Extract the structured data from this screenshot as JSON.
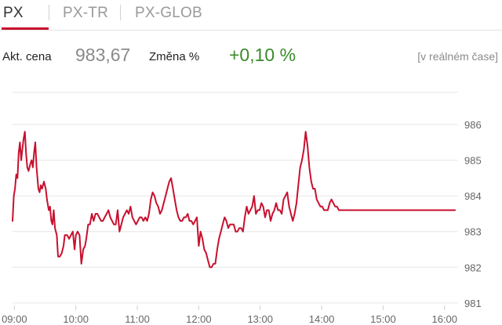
{
  "tabs": [
    {
      "label": "PX",
      "active": true
    },
    {
      "label": "PX-TR",
      "active": false
    },
    {
      "label": "PX-GLOB",
      "active": false
    }
  ],
  "quote": {
    "price_label": "Akt. cena",
    "price": "983,67",
    "change_label": "Změna %",
    "change": "+0,10 %",
    "status": "[v reálném čase]"
  },
  "colors": {
    "accent": "#c8102e",
    "positive": "#3a8a2a",
    "line": "#c8102e"
  },
  "chart_data": {
    "type": "line",
    "title": "",
    "xlabel": "",
    "ylabel": "",
    "ylim": [
      980.8,
      986.9
    ],
    "y_ticks": [
      981,
      982,
      983,
      984,
      985,
      986
    ],
    "x_ticks": [
      "09:00",
      "10:00",
      "11:00",
      "12:00",
      "13:00",
      "14:00",
      "15:00",
      "16:00"
    ],
    "x_range_hours": [
      8.97,
      16.22
    ],
    "grid": "horizontal",
    "series": [
      {
        "x": [
          8.97,
          8.99,
          9.01,
          9.03,
          9.05,
          9.07,
          9.09,
          9.11,
          9.13,
          9.15,
          9.17,
          9.19,
          9.21,
          9.23,
          9.26,
          9.28,
          9.3,
          9.32,
          9.34,
          9.36,
          9.39,
          9.41,
          9.43,
          9.45,
          9.48,
          9.51,
          9.53,
          9.56,
          9.58,
          9.6,
          9.62,
          9.64,
          9.66,
          9.69,
          9.71,
          9.74,
          9.77,
          9.8,
          9.82,
          9.84,
          9.86,
          9.89,
          9.92,
          9.95,
          9.98,
          10.0,
          10.03,
          10.06,
          10.09,
          10.12,
          10.15,
          10.17,
          10.2,
          10.23,
          10.26,
          10.29,
          10.32,
          10.35,
          10.38,
          10.41,
          10.44,
          10.47,
          10.5,
          10.53,
          10.56,
          10.59,
          10.62,
          10.65,
          10.68,
          10.71,
          10.74,
          10.77,
          10.8,
          10.83,
          10.86,
          10.89,
          10.92,
          10.95,
          10.98,
          11.01,
          11.04,
          11.07,
          11.1,
          11.13,
          11.16,
          11.19,
          11.22,
          11.25,
          11.28,
          11.31,
          11.34,
          11.37,
          11.4,
          11.43,
          11.46,
          11.49,
          11.52,
          11.55,
          11.58,
          11.61,
          11.64,
          11.67,
          11.7,
          11.73,
          11.76,
          11.79,
          11.82,
          11.85,
          11.88,
          11.91,
          11.94,
          11.97,
          12.0,
          12.03,
          12.06,
          12.09,
          12.12,
          12.15,
          12.18,
          12.21,
          12.24,
          12.27,
          12.3,
          12.33,
          12.36,
          12.39,
          12.42,
          12.45,
          12.48,
          12.51,
          12.54,
          12.57,
          12.6,
          12.63,
          12.66,
          12.69,
          12.72,
          12.75,
          12.78,
          12.81,
          12.84,
          12.87,
          12.9,
          12.93,
          12.96,
          12.99,
          13.02,
          13.05,
          13.08,
          13.11,
          13.14,
          13.17,
          13.2,
          13.23,
          13.26,
          13.29,
          13.32,
          13.35,
          13.38,
          13.41,
          13.44,
          13.47,
          13.5,
          13.53,
          13.56,
          13.59,
          13.62,
          13.65,
          13.68,
          13.71,
          13.74,
          13.77,
          13.8,
          13.83,
          13.86,
          13.89,
          13.92,
          13.95,
          13.98,
          14.01,
          14.04,
          14.07,
          14.1,
          14.13,
          14.16,
          14.19,
          14.22,
          14.25,
          14.28,
          14.31,
          14.34,
          14.37,
          14.4,
          14.43,
          14.46,
          14.49,
          14.52,
          14.55,
          14.58,
          14.61,
          14.64,
          14.67,
          14.7,
          14.73,
          14.76,
          14.79,
          14.82,
          14.85,
          14.88,
          14.91,
          14.94,
          14.97,
          15.0,
          15.03,
          15.06,
          15.09,
          15.12,
          15.15,
          15.18,
          15.21,
          15.24,
          15.27,
          15.3,
          15.33,
          15.36,
          15.39,
          15.42,
          15.45,
          15.48,
          15.51,
          15.54,
          15.57,
          15.6,
          15.63,
          15.66,
          15.69,
          15.72,
          15.75,
          15.78,
          15.81,
          15.84,
          15.87,
          15.9,
          15.93,
          15.96,
          15.99,
          16.02,
          16.05,
          16.08,
          16.11,
          16.14,
          16.17,
          16.2
        ],
        "y": [
          983.3,
          984.0,
          984.2,
          984.6,
          984.5,
          985.2,
          985.5,
          985.0,
          985.3,
          985.6,
          985.8,
          985.2,
          984.8,
          984.7,
          984.9,
          985.0,
          984.8,
          985.2,
          985.5,
          984.8,
          984.2,
          984.1,
          984.3,
          984.2,
          984.4,
          984.2,
          983.9,
          983.6,
          983.7,
          983.3,
          983.2,
          983.6,
          983.1,
          982.9,
          982.3,
          982.3,
          982.4,
          982.6,
          982.9,
          982.9,
          982.9,
          982.8,
          982.9,
          983.0,
          982.5,
          982.9,
          983.0,
          982.9,
          982.1,
          982.5,
          982.6,
          982.8,
          983.2,
          983.2,
          983.5,
          983.3,
          983.5,
          983.5,
          983.4,
          983.3,
          983.3,
          983.4,
          983.5,
          983.6,
          983.4,
          983.3,
          983.2,
          983.2,
          983.6,
          983.0,
          983.2,
          983.4,
          983.5,
          983.6,
          983.5,
          983.7,
          983.4,
          983.3,
          983.2,
          983.3,
          983.4,
          983.4,
          983.3,
          983.4,
          983.3,
          983.5,
          983.9,
          984.1,
          984.0,
          983.8,
          983.7,
          983.5,
          983.6,
          983.8,
          984.0,
          984.2,
          984.4,
          984.5,
          984.2,
          983.9,
          983.6,
          983.4,
          983.3,
          983.3,
          983.4,
          983.4,
          983.5,
          983.3,
          983.3,
          983.2,
          983.3,
          983.4,
          982.6,
          983.0,
          982.8,
          982.5,
          982.4,
          982.2,
          982.0,
          982.0,
          982.1,
          982.1,
          982.5,
          982.8,
          983.0,
          983.2,
          983.4,
          983.3,
          983.1,
          983.2,
          983.2,
          983.2,
          983.0,
          983.0,
          983.1,
          983.1,
          983.0,
          983.4,
          983.7,
          983.5,
          983.6,
          983.7,
          984.0,
          983.5,
          983.6,
          983.6,
          983.8,
          983.7,
          983.4,
          983.6,
          983.6,
          983.3,
          983.5,
          983.6,
          983.8,
          983.6,
          983.6,
          983.5,
          983.9,
          984.0,
          984.1,
          983.7,
          983.5,
          983.3,
          983.5,
          983.8,
          984.3,
          984.8,
          985.0,
          985.3,
          985.8,
          985.4,
          984.8,
          984.4,
          984.2,
          984.2,
          983.9,
          983.8,
          983.7,
          983.7,
          983.6,
          983.6,
          983.6,
          983.8,
          983.9,
          983.8,
          983.7,
          983.7,
          983.6,
          983.6,
          983.6,
          983.6,
          983.6,
          983.6,
          983.6,
          983.6,
          983.6,
          983.6,
          983.6,
          983.6,
          983.6,
          983.6,
          983.6,
          983.6,
          983.6,
          983.6,
          983.6,
          983.6,
          983.6,
          983.6,
          983.6,
          983.6,
          983.6,
          983.6,
          983.6,
          983.6,
          983.6,
          983.6,
          983.6,
          983.6,
          983.6,
          983.6,
          983.6,
          983.6,
          983.6,
          983.6,
          983.6,
          983.6,
          983.6,
          983.6,
          983.6,
          983.6,
          983.6,
          983.6,
          983.6,
          983.6,
          983.6,
          983.6,
          983.6,
          983.6,
          983.6,
          983.6,
          983.6,
          983.6,
          983.6,
          983.6,
          983.6,
          983.6,
          983.6,
          983.6,
          983.6,
          983.6,
          983.6
        ]
      }
    ]
  }
}
